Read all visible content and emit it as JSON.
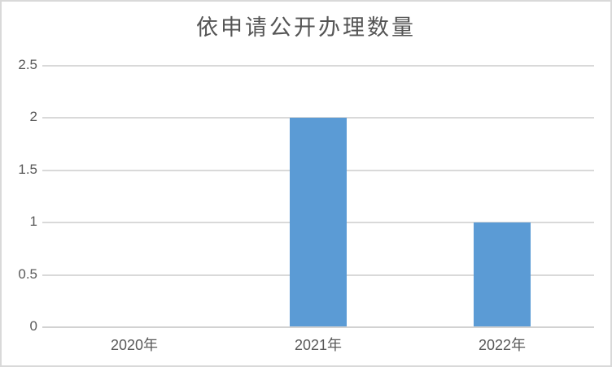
{
  "chart": {
    "title": "依申请公开办理数量",
    "colors": {
      "bar": "#5b9bd5",
      "gridline": "#d9d9d9",
      "axis_line": "#d2d2d2",
      "text": "#595959",
      "title_text": "#555555",
      "chart_border": "#d9d9d9",
      "background": "#ffffff"
    }
  },
  "chart_data": {
    "type": "bar",
    "title": "依申请公开办理数量",
    "categories": [
      "2020年",
      "2021年",
      "2022年"
    ],
    "values": [
      0,
      2,
      1
    ],
    "series": [
      {
        "name": "依申请公开办理数量",
        "values": [
          0,
          2,
          1
        ]
      }
    ],
    "xlabel": "",
    "ylabel": "",
    "ylim": [
      0,
      2.5
    ],
    "ytick_step": 0.5,
    "yticks": [
      "0",
      "0.5",
      "1",
      "1.5",
      "2",
      "2.5"
    ],
    "grid": "horizontal-on",
    "legend": "none",
    "data_labels": "none",
    "bar_color": "#5b9bd5"
  }
}
